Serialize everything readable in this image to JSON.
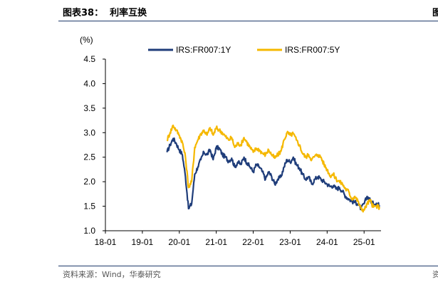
{
  "header": {
    "title": "图表38：  利率互换"
  },
  "footer": {
    "source": "资料来源：Wind，华泰研究"
  },
  "edge": {
    "top_fragment": "图",
    "bottom_fragment": "资"
  },
  "chart_data": {
    "type": "line",
    "title": "",
    "unit_label": "(%)",
    "xlabel": "",
    "ylabel": "",
    "x_ticks": [
      "18-01",
      "19-01",
      "20-01",
      "21-01",
      "22-01",
      "23-01",
      "24-01",
      "25-01"
    ],
    "y_ticks": [
      "1.0",
      "1.5",
      "2.0",
      "2.5",
      "3.0",
      "3.5",
      "4.0",
      "4.5"
    ],
    "ylim": [
      1.0,
      4.5
    ],
    "xlim": [
      "18-01",
      "25-06"
    ],
    "grid": false,
    "legend_position": "top",
    "series": [
      {
        "name": "IRS:FR007:1Y",
        "color": "#1f3d7a",
        "points": [
          [
            "19-09",
            2.6
          ],
          [
            "19-10",
            2.75
          ],
          [
            "19-11",
            2.88
          ],
          [
            "19-12",
            2.78
          ],
          [
            "20-01",
            2.65
          ],
          [
            "20-02",
            2.55
          ],
          [
            "20-03",
            2.1
          ],
          [
            "20-04",
            1.45
          ],
          [
            "20-05",
            1.55
          ],
          [
            "20-06",
            2.15
          ],
          [
            "20-07",
            2.3
          ],
          [
            "20-08",
            2.45
          ],
          [
            "20-09",
            2.6
          ],
          [
            "20-10",
            2.55
          ],
          [
            "20-11",
            2.65
          ],
          [
            "20-12",
            2.45
          ],
          [
            "21-01",
            2.7
          ],
          [
            "21-02",
            2.68
          ],
          [
            "21-03",
            2.55
          ],
          [
            "21-04",
            2.5
          ],
          [
            "21-05",
            2.42
          ],
          [
            "21-06",
            2.48
          ],
          [
            "21-07",
            2.3
          ],
          [
            "21-08",
            2.4
          ],
          [
            "21-09",
            2.35
          ],
          [
            "21-10",
            2.5
          ],
          [
            "21-11",
            2.38
          ],
          [
            "21-12",
            2.3
          ],
          [
            "22-01",
            2.2
          ],
          [
            "22-02",
            2.35
          ],
          [
            "22-03",
            2.3
          ],
          [
            "22-04",
            2.2
          ],
          [
            "22-05",
            2.05
          ],
          [
            "22-06",
            2.2
          ],
          [
            "22-07",
            2.1
          ],
          [
            "22-08",
            1.95
          ],
          [
            "22-09",
            2.05
          ],
          [
            "22-10",
            2.1
          ],
          [
            "22-11",
            2.3
          ],
          [
            "22-12",
            2.45
          ],
          [
            "23-01",
            2.4
          ],
          [
            "23-02",
            2.5
          ],
          [
            "23-03",
            2.35
          ],
          [
            "23-04",
            2.28
          ],
          [
            "23-05",
            2.15
          ],
          [
            "23-06",
            2.05
          ],
          [
            "23-07",
            2.1
          ],
          [
            "23-08",
            1.95
          ],
          [
            "23-09",
            2.05
          ],
          [
            "23-10",
            2.1
          ],
          [
            "23-11",
            2.05
          ],
          [
            "23-12",
            2.0
          ],
          [
            "24-01",
            1.95
          ],
          [
            "24-02",
            1.9
          ],
          [
            "24-03",
            1.92
          ],
          [
            "24-04",
            1.85
          ],
          [
            "24-05",
            1.88
          ],
          [
            "24-06",
            1.8
          ],
          [
            "24-07",
            1.7
          ],
          [
            "24-08",
            1.65
          ],
          [
            "24-09",
            1.6
          ],
          [
            "24-10",
            1.58
          ],
          [
            "24-11",
            1.55
          ],
          [
            "24-12",
            1.45
          ],
          [
            "25-01",
            1.55
          ],
          [
            "25-02",
            1.7
          ],
          [
            "25-03",
            1.62
          ],
          [
            "25-04",
            1.55
          ],
          [
            "25-05",
            1.56
          ],
          [
            "25-06",
            1.52
          ]
        ]
      },
      {
        "name": "IRS:FR007:5Y",
        "color": "#f5b800",
        "points": [
          [
            "19-09",
            2.85
          ],
          [
            "19-10",
            3.0
          ],
          [
            "19-11",
            3.15
          ],
          [
            "19-12",
            3.05
          ],
          [
            "20-01",
            2.95
          ],
          [
            "20-02",
            2.8
          ],
          [
            "20-03",
            2.5
          ],
          [
            "20-04",
            1.88
          ],
          [
            "20-05",
            2.0
          ],
          [
            "20-06",
            2.7
          ],
          [
            "20-07",
            2.85
          ],
          [
            "20-08",
            2.98
          ],
          [
            "20-09",
            3.05
          ],
          [
            "20-10",
            2.95
          ],
          [
            "20-11",
            3.1
          ],
          [
            "20-12",
            2.95
          ],
          [
            "21-01",
            3.1
          ],
          [
            "21-02",
            3.05
          ],
          [
            "21-03",
            3.0
          ],
          [
            "21-04",
            2.92
          ],
          [
            "21-05",
            2.85
          ],
          [
            "21-06",
            2.9
          ],
          [
            "21-07",
            2.7
          ],
          [
            "21-08",
            2.78
          ],
          [
            "21-09",
            2.75
          ],
          [
            "21-10",
            2.9
          ],
          [
            "21-11",
            2.8
          ],
          [
            "21-12",
            2.7
          ],
          [
            "22-01",
            2.6
          ],
          [
            "22-02",
            2.68
          ],
          [
            "22-03",
            2.65
          ],
          [
            "22-04",
            2.58
          ],
          [
            "22-05",
            2.55
          ],
          [
            "22-06",
            2.65
          ],
          [
            "22-07",
            2.55
          ],
          [
            "22-08",
            2.48
          ],
          [
            "22-09",
            2.55
          ],
          [
            "22-10",
            2.62
          ],
          [
            "22-11",
            2.85
          ],
          [
            "22-12",
            3.0
          ],
          [
            "23-01",
            2.95
          ],
          [
            "23-02",
            2.98
          ],
          [
            "23-03",
            2.85
          ],
          [
            "23-04",
            2.75
          ],
          [
            "23-05",
            2.58
          ],
          [
            "23-06",
            2.5
          ],
          [
            "23-07",
            2.55
          ],
          [
            "23-08",
            2.45
          ],
          [
            "23-09",
            2.52
          ],
          [
            "23-10",
            2.55
          ],
          [
            "23-11",
            2.5
          ],
          [
            "23-12",
            2.35
          ],
          [
            "24-01",
            2.25
          ],
          [
            "24-02",
            2.12
          ],
          [
            "24-03",
            2.15
          ],
          [
            "24-04",
            2.05
          ],
          [
            "24-05",
            2.0
          ],
          [
            "24-06",
            1.95
          ],
          [
            "24-07",
            1.85
          ],
          [
            "24-08",
            1.8
          ],
          [
            "24-09",
            1.65
          ],
          [
            "24-10",
            1.7
          ],
          [
            "24-11",
            1.6
          ],
          [
            "24-12",
            1.45
          ],
          [
            "25-01",
            1.42
          ],
          [
            "25-02",
            1.55
          ],
          [
            "25-03",
            1.62
          ],
          [
            "25-04",
            1.48
          ],
          [
            "25-05",
            1.5
          ],
          [
            "25-06",
            1.48
          ]
        ]
      }
    ]
  }
}
